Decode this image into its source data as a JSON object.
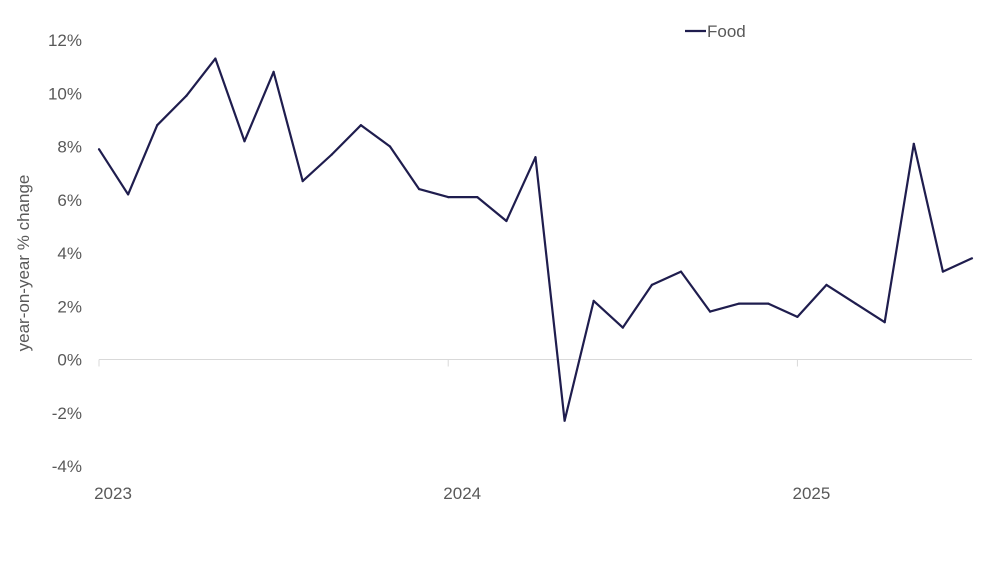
{
  "chart_data": {
    "type": "line",
    "ylabel": "year-on-year % change",
    "xlabel": "",
    "title": "",
    "ylim": [
      -4,
      12
    ],
    "y_ticks": [
      12,
      10,
      8,
      6,
      4,
      2,
      0,
      -2,
      -4
    ],
    "y_tick_suffix": "%",
    "x_ticks": [
      {
        "label": "2023",
        "month_index": 0
      },
      {
        "label": "2024",
        "month_index": 12
      },
      {
        "label": "2025",
        "month_index": 24
      }
    ],
    "grid": false,
    "legend_position": "top-right",
    "series": [
      {
        "name": "Food",
        "color": "#1f1d4e",
        "x": [
          "2023-01",
          "2023-02",
          "2023-03",
          "2023-04",
          "2023-05",
          "2023-06",
          "2023-07",
          "2023-08",
          "2023-09",
          "2023-10",
          "2023-11",
          "2023-12",
          "2024-01",
          "2024-02",
          "2024-03",
          "2024-04",
          "2024-05",
          "2024-06",
          "2024-07",
          "2024-08",
          "2024-09",
          "2024-10",
          "2024-11",
          "2024-12",
          "2025-01",
          "2025-02",
          "2025-03",
          "2025-04",
          "2025-05",
          "2025-06",
          "2025-07"
        ],
        "values": [
          7.9,
          6.2,
          8.8,
          9.9,
          11.3,
          8.2,
          10.8,
          6.7,
          7.7,
          8.8,
          8.0,
          6.4,
          6.1,
          6.1,
          5.2,
          7.6,
          -2.3,
          2.2,
          1.2,
          2.8,
          3.3,
          1.8,
          2.1,
          2.1,
          1.6,
          2.8,
          2.1,
          1.4,
          8.1,
          3.3,
          3.8
        ]
      }
    ]
  }
}
